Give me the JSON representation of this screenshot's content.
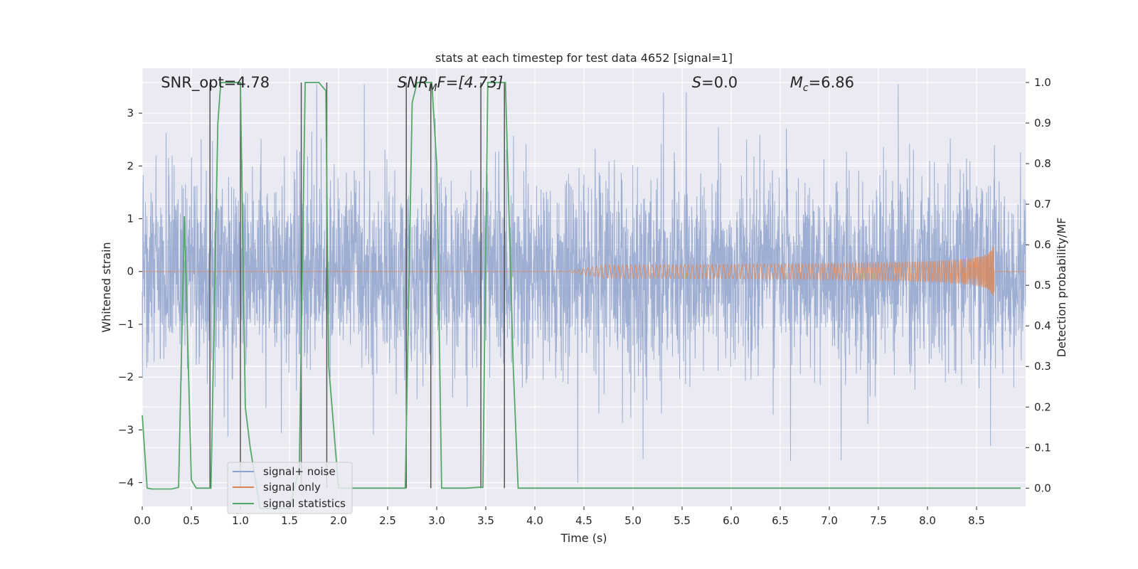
{
  "chart_data": {
    "type": "line",
    "title": "stats at each timestep for test data 4652 [signal=1]",
    "xlabel": "Time (s)",
    "ylabel_left": "Whitened strain",
    "ylabel_right": "Detection probability/MF",
    "xlim": [
      0.0,
      9.0
    ],
    "ylim_left": [
      -4.45,
      3.85
    ],
    "ylim_right": [
      -0.045,
      1.035
    ],
    "x_ticks": [
      "0.0",
      "0.5",
      "1.0",
      "1.5",
      "2.0",
      "2.5",
      "3.0",
      "3.5",
      "4.0",
      "4.5",
      "5.0",
      "5.5",
      "6.0",
      "6.5",
      "7.0",
      "7.5",
      "8.0",
      "8.5"
    ],
    "y_ticks_left": [
      "3",
      "2",
      "1",
      "0",
      "−1",
      "−2",
      "−3",
      "−4"
    ],
    "y_ticks_right": [
      "1.0",
      "0.9",
      "0.8",
      "0.7",
      "0.6",
      "0.5",
      "0.4",
      "0.3",
      "0.2",
      "0.1",
      "0.0"
    ],
    "grid": true,
    "legend_placement": "lower-left",
    "annotations": [
      {
        "text": "SNR_opt=4.78",
        "x": 0.19
      },
      {
        "text": "SNR",
        "sub": "M",
        "rest": "F=[4.73]",
        "italic": true,
        "x": 2.6
      },
      {
        "text": "S",
        "rest": "=0.0",
        "italic": true,
        "x": 5.6
      },
      {
        "text": "M",
        "sub": "c",
        "rest": "=6.86",
        "italic": true,
        "x": 6.6
      }
    ],
    "series": [
      {
        "name": "signal+ noise",
        "color": "#8fa3cc",
        "kind": "noise",
        "amplitude_envelope": [
          -4.0,
          3.55
        ]
      },
      {
        "name": "signal only",
        "color": "#dd8452",
        "kind": "chirp",
        "start": 4.3,
        "end": 8.68,
        "peak_amplitude": 0.5
      },
      {
        "name": "signal statistics",
        "color": "#55a868",
        "axis": "right",
        "x": [
          0.0,
          0.05,
          0.1,
          0.2,
          0.3,
          0.37,
          0.43,
          0.5,
          0.55,
          0.6,
          0.7,
          0.77,
          0.8,
          0.9,
          1.0,
          1.05,
          1.1,
          1.2,
          1.3,
          1.4,
          1.5,
          1.6,
          1.66,
          1.7,
          1.8,
          1.87,
          1.9,
          2.0,
          2.2,
          2.4,
          2.6,
          2.68,
          2.75,
          2.8,
          2.87,
          2.95,
          3.0,
          3.05,
          3.1,
          3.2,
          3.3,
          3.42,
          3.47,
          3.52,
          3.6,
          3.7,
          3.78,
          3.83,
          3.9,
          4.5,
          5.0,
          6.0,
          7.0,
          8.0,
          8.95
        ],
        "y": [
          0.18,
          0.0,
          -0.002,
          -0.002,
          -0.002,
          0.002,
          0.67,
          0.02,
          0.0,
          0.0,
          0.0,
          0.9,
          1.0,
          1.0,
          1.0,
          0.2,
          0.1,
          -0.05,
          -0.05,
          -0.05,
          -0.05,
          0.05,
          1.0,
          1.0,
          1.0,
          0.98,
          0.3,
          0.0,
          0.0,
          0.0,
          0.0,
          0.0,
          0.95,
          1.0,
          1.0,
          1.0,
          0.8,
          0.0,
          0.0,
          0.0,
          0.0,
          0.002,
          0.002,
          1.0,
          1.0,
          1.0,
          0.3,
          0.0,
          0.0,
          0.0,
          0.0,
          0.0,
          0.0,
          0.0,
          0.0
        ]
      }
    ],
    "threshold_vlines": [
      0.69,
      1.0,
      1.62,
      1.88,
      2.69,
      2.94,
      3.45,
      3.69
    ],
    "colors": {
      "background": "#eaeaf2",
      "grid": "#ffffff",
      "vline": "#555555"
    }
  }
}
